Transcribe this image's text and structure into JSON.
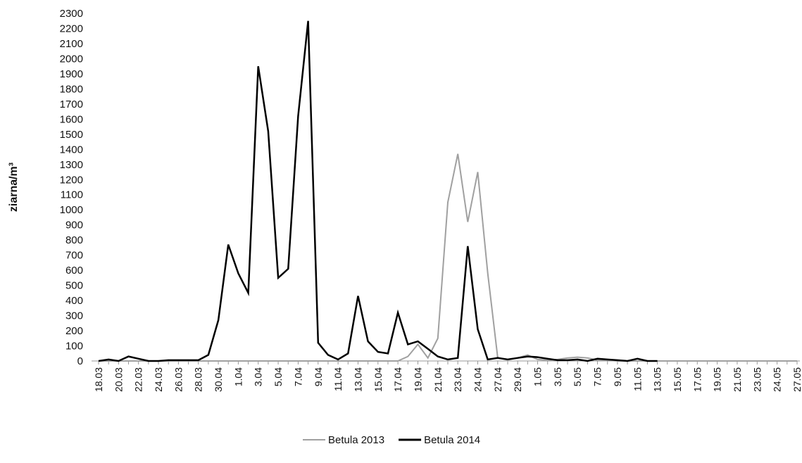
{
  "chart_data": {
    "type": "line",
    "y_label": "ziarna/m³",
    "categories": [
      "18.03",
      null,
      "20.03",
      null,
      "22.03",
      null,
      "24.03",
      null,
      "26.03",
      null,
      "28.03",
      null,
      "30.04",
      null,
      "1.04",
      null,
      "3.04",
      null,
      "5.04",
      null,
      "7.04",
      null,
      "9.04",
      null,
      "11.04",
      null,
      "13.04",
      null,
      "15.04",
      null,
      "17.04",
      null,
      "19.04",
      null,
      "21.04",
      null,
      "23.04",
      null,
      "24.04",
      null,
      "27.04",
      null,
      "29.04",
      null,
      "1.05",
      null,
      "3.05",
      null,
      "5.05",
      null,
      "7.05",
      null,
      "9.05",
      null,
      "11.05",
      null,
      "13.05",
      null,
      "15.05",
      null,
      "17.05",
      null,
      "19.05",
      null,
      "21.05",
      null,
      "23.05",
      null,
      "24.05",
      null,
      "27.05"
    ],
    "series": [
      {
        "name": "Betula 2013",
        "color": "#a0a0a0",
        "values": [
          0,
          0,
          0,
          0,
          0,
          0,
          0,
          0,
          0,
          0,
          0,
          0,
          0,
          0,
          0,
          0,
          0,
          0,
          0,
          0,
          0,
          0,
          0,
          0,
          0,
          0,
          0,
          0,
          0,
          0,
          0,
          30,
          110,
          20,
          150,
          1050,
          1370,
          920,
          1250,
          580,
          20,
          10,
          20,
          40,
          10,
          5,
          10,
          20,
          25,
          20,
          5,
          5,
          0,
          0,
          0,
          0,
          0,
          0,
          0,
          0,
          0,
          0,
          0,
          0,
          0,
          0,
          0,
          0,
          0,
          0,
          0
        ]
      },
      {
        "name": "Betula 2014",
        "color": "#000000",
        "values": [
          0,
          10,
          0,
          30,
          15,
          0,
          0,
          5,
          5,
          5,
          5,
          40,
          270,
          770,
          580,
          450,
          1950,
          1520,
          550,
          610,
          1620,
          2250,
          120,
          40,
          10,
          50,
          430,
          130,
          60,
          50,
          320,
          110,
          130,
          80,
          30,
          10,
          20,
          760,
          210,
          10,
          20,
          10,
          20,
          30,
          25,
          15,
          5,
          5,
          10,
          0,
          15,
          10,
          5,
          0,
          15,
          0,
          0,
          null,
          null,
          null,
          null,
          null,
          null,
          null,
          null,
          null,
          null,
          null,
          null,
          null,
          null
        ]
      }
    ],
    "ylim": [
      0,
      2300
    ],
    "yticks": [
      0,
      100,
      200,
      300,
      400,
      500,
      600,
      700,
      800,
      900,
      1000,
      1100,
      1200,
      1300,
      1400,
      1500,
      1600,
      1700,
      1800,
      1900,
      2000,
      2100,
      2200,
      2300
    ]
  }
}
